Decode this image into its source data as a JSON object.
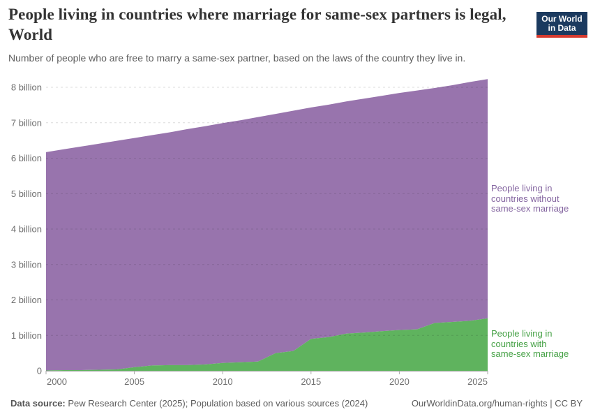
{
  "header": {
    "title": "People living in countries where marriage for same-sex partners is legal, World",
    "subtitle": "Number of people who are free to marry a same-sex partner, based on the laws of the country they live in.",
    "logo": {
      "line1": "Our World",
      "line2": "in Data",
      "bg_color": "#1b3a5f",
      "accent_color": "#d63a2f"
    }
  },
  "chart_data": {
    "type": "area",
    "stacked": true,
    "title": "People living in countries where marriage for same-sex partners is legal, World",
    "xlabel": "",
    "ylabel": "",
    "units": "billion people",
    "grid": "dashed horizontal gridlines",
    "legend_position": "right-edge area labels",
    "xlim": [
      2000,
      2025
    ],
    "ylim": [
      0,
      8.3
    ],
    "x": [
      2000,
      2001,
      2002,
      2003,
      2004,
      2005,
      2006,
      2007,
      2008,
      2009,
      2010,
      2011,
      2012,
      2013,
      2014,
      2015,
      2016,
      2017,
      2018,
      2019,
      2020,
      2021,
      2022,
      2023,
      2024,
      2025
    ],
    "x_ticks": [
      2000,
      2005,
      2010,
      2015,
      2020,
      2025
    ],
    "y_ticks": [
      {
        "v": 0,
        "label": "0"
      },
      {
        "v": 1,
        "label": "1 billion"
      },
      {
        "v": 2,
        "label": "2 billion"
      },
      {
        "v": 3,
        "label": "3 billion"
      },
      {
        "v": 4,
        "label": "4 billion"
      },
      {
        "v": 5,
        "label": "5 billion"
      },
      {
        "v": 6,
        "label": "6 billion"
      },
      {
        "v": 7,
        "label": "7 billion"
      },
      {
        "v": 8,
        "label": "8 billion"
      }
    ],
    "series": [
      {
        "name": "People living in countries with same-sex marriage",
        "color": "#5fb35e",
        "label_color": "#45a145",
        "label_lines": [
          "People living in",
          "countries with",
          "same-sex marriage"
        ],
        "values": [
          0.01,
          0.02,
          0.02,
          0.03,
          0.04,
          0.1,
          0.15,
          0.16,
          0.16,
          0.18,
          0.22,
          0.24,
          0.26,
          0.5,
          0.56,
          0.9,
          0.95,
          1.05,
          1.08,
          1.12,
          1.15,
          1.17,
          1.35,
          1.38,
          1.41,
          1.48
        ]
      },
      {
        "name": "People living in countries without same-sex marriage",
        "color": "#9874ad",
        "label_color": "#8465a0",
        "label_lines": [
          "People living in",
          "countries without",
          "same-sex marriage"
        ],
        "values": [
          6.16,
          6.23,
          6.31,
          6.38,
          6.45,
          6.47,
          6.5,
          6.57,
          6.66,
          6.72,
          6.77,
          6.83,
          6.9,
          6.75,
          6.78,
          6.53,
          6.56,
          6.55,
          6.6,
          6.64,
          6.69,
          6.74,
          6.63,
          6.68,
          6.74,
          6.75
        ]
      }
    ]
  },
  "footer": {
    "source_label": "Data source:",
    "source_text": "Pew Research Center (2025); Population based on various sources (2024)",
    "right_text": "OurWorldinData.org/human-rights | CC BY"
  }
}
